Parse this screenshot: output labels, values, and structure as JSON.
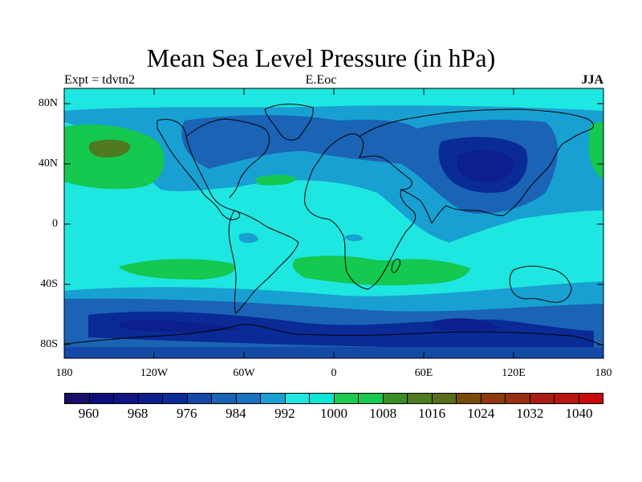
{
  "title": "Mean Sea Level Pressure (in hPa)",
  "left_label": "Expt = tdvtn2",
  "center_label": "E.Eoc",
  "right_label": "JJA",
  "axes": {
    "lat_ticks": [
      "80N",
      "40N",
      "0",
      "40S",
      "80S"
    ],
    "lon_ticks": [
      "180",
      "120W",
      "60W",
      "0",
      "60E",
      "120E",
      "180"
    ]
  },
  "colorbar": {
    "colors": [
      "#1a0f66",
      "#0e0e7a",
      "#101482",
      "#0c1f8c",
      "#0a2a96",
      "#1449a8",
      "#1a63b5",
      "#1b73bf",
      "#18a0d2",
      "#1ee6e0",
      "#0ce6d6",
      "#1ec952",
      "#14c850",
      "#3c8c28",
      "#4f7a1f",
      "#5a6e1a",
      "#7a4a0c",
      "#8c3a0c",
      "#963014",
      "#a81e14",
      "#b91410",
      "#c80a0a"
    ],
    "labels": [
      "960",
      "968",
      "976",
      "984",
      "992",
      "1000",
      "1008",
      "1016",
      "1024",
      "1032",
      "1040"
    ]
  },
  "map": {
    "levels_hpa": {
      "land_high_southern_subtropics": 1008,
      "north_pacific_high_core": 1016,
      "asian_low_core": 976,
      "antarctic_trough_core": 976,
      "background": 1000
    },
    "colors": {
      "background": "#1ee6e0",
      "low_992": "#18a0d2",
      "low_984": "#1a63b5",
      "low_976": "#0a2a96",
      "high_1008": "#14c850",
      "high_1016": "#4f7a1f",
      "coast": "#000000"
    }
  }
}
